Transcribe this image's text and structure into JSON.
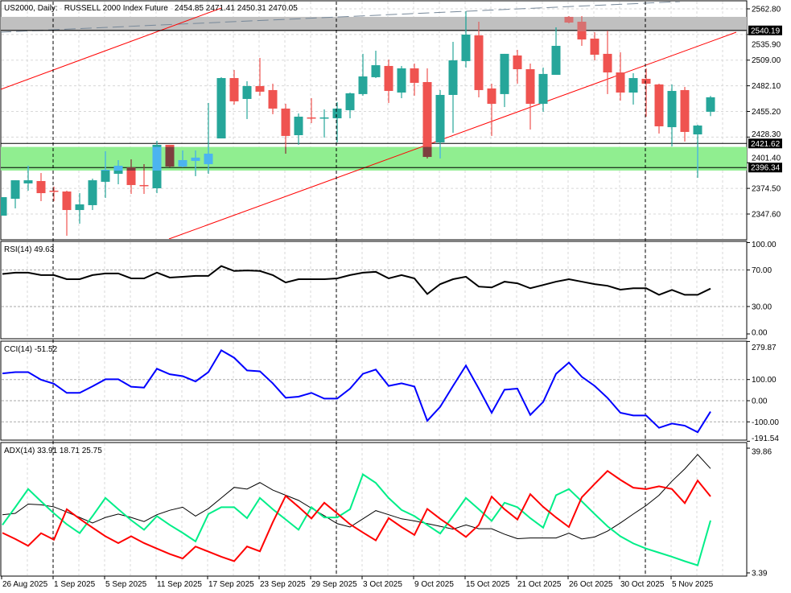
{
  "header": {
    "symbol": "US2000, Daily:",
    "description": "RUSSELL 2000 Index Future",
    "ohlc": "2454.85 2471.41 2450.31 2470.05"
  },
  "colors": {
    "bull": "#26a69a",
    "bear": "#ef5350",
    "bull_in_zone": "#4cb4f0",
    "bear_in_zone": "#7d3f3f",
    "bear_in_gray": "#d87070",
    "support_zone": "#90ee90",
    "resistance_zone": "#c0c0c0",
    "trendline": "#ff0000",
    "rsi": "#000000",
    "cci": "#0000ff",
    "adx": "#000000",
    "plus_di": "#00ee88",
    "minus_di": "#ff0000"
  },
  "price_axis": {
    "ticks": [
      "2562.80",
      "2535.90",
      "2509.00",
      "2482.10",
      "2455.20",
      "2428.30",
      "2401.40",
      "2374.50",
      "2347.60"
    ],
    "tick_values": [
      2562.8,
      2535.9,
      2509.0,
      2482.1,
      2455.2,
      2428.3,
      2401.4,
      2374.5,
      2347.6
    ],
    "markers": [
      "2540.19",
      "2421.62",
      "2396.34"
    ],
    "marker_values": [
      2540.19,
      2421.62,
      2396.34
    ]
  },
  "zones": {
    "support": [
      2393.2,
      2418.0
    ],
    "resistance": [
      2539.2,
      2554.4
    ]
  },
  "dates": [
    "26 Aug 2025",
    "1 Sep 2025",
    "5 Sep 2025",
    "11 Sep 2025",
    "17 Sep 2025",
    "23 Sep 2025",
    "29 Sep 2025",
    "3 Oct 2025",
    "9 Oct 2025",
    "15 Oct 2025",
    "21 Oct 2025",
    "26 Oct 2025",
    "30 Oct 2025",
    "5 Nov 2025"
  ],
  "rsi": {
    "label": "RSI(14) 49.63",
    "ticks": [
      "100.00",
      "70.00",
      "30.00",
      "0.00"
    ],
    "tick_values": [
      100,
      70,
      30,
      0
    ]
  },
  "cci": {
    "label": "CCI(14) -51.52",
    "ticks": [
      "279.87",
      "100.00",
      "0.00",
      "-100.00",
      "-191.54"
    ],
    "tick_values": [
      279.87,
      100,
      0,
      -100,
      -191.54
    ]
  },
  "adx": {
    "label": "ADX(14) 33.91 18.71 25.75",
    "ticks": [
      "39.86",
      "3.39"
    ],
    "tick_values": [
      39.86,
      3.39
    ]
  },
  "chart_data": {
    "type": "candlestick",
    "ohlc": [
      [
        2345.9,
        2365.3,
        2345.9,
        2365.3
      ],
      [
        2363.6,
        2383.0,
        2353.5,
        2383.0
      ],
      [
        2379.7,
        2398.2,
        2372.1,
        2383.0
      ],
      [
        2382.2,
        2390.6,
        2361.1,
        2369.5
      ],
      [
        2372.1,
        2376.3,
        2361.1,
        2371.2
      ],
      [
        2371.2,
        2372.1,
        2324.8,
        2351.8
      ],
      [
        2351.8,
        2369.5,
        2337.5,
        2357.7
      ],
      [
        2356.9,
        2384.7,
        2351.8,
        2383.0
      ],
      [
        2381.4,
        2413.4,
        2364.5,
        2394.0
      ],
      [
        2389.8,
        2404.1,
        2378.8,
        2398.2
      ],
      [
        2396.5,
        2405.0,
        2368.7,
        2378.0
      ],
      [
        2378.0,
        2399.9,
        2368.7,
        2377.5
      ],
      [
        2374.6,
        2424.4,
        2369.5,
        2420.2
      ],
      [
        2420.2,
        2420.2,
        2396.5,
        2397.4
      ],
      [
        2397.4,
        2414.3,
        2396.5,
        2404.1
      ],
      [
        2403.3,
        2414.3,
        2387.3,
        2406.7
      ],
      [
        2399.9,
        2464.1,
        2389.8,
        2410.9
      ],
      [
        2426.9,
        2491.1,
        2426.9,
        2490.2
      ],
      [
        2490.2,
        2498.7,
        2462.4,
        2465.8
      ],
      [
        2468.3,
        2486.9,
        2447.2,
        2481.8
      ],
      [
        2481.8,
        2511.3,
        2471.7,
        2475.9
      ],
      [
        2477.6,
        2484.3,
        2452.3,
        2458.2
      ],
      [
        2458.2,
        2463.2,
        2410.9,
        2429.5
      ],
      [
        2430.3,
        2453.1,
        2420.2,
        2449.7
      ],
      [
        2448.9,
        2469.1,
        2443.0,
        2448.0
      ],
      [
        2448.0,
        2457.3,
        2427.8,
        2448.9
      ],
      [
        2448.0,
        2464.9,
        2422.7,
        2458.2
      ],
      [
        2456.5,
        2475.0,
        2448.0,
        2474.2
      ],
      [
        2473.4,
        2515.6,
        2471.7,
        2491.9
      ],
      [
        2491.1,
        2518.9,
        2490.2,
        2503.7
      ],
      [
        2502.9,
        2509.6,
        2464.1,
        2476.7
      ],
      [
        2475.0,
        2502.9,
        2469.1,
        2500.4
      ],
      [
        2500.4,
        2505.4,
        2471.7,
        2485.2
      ],
      [
        2486.0,
        2500.4,
        2405.8,
        2407.5
      ],
      [
        2422.7,
        2477.6,
        2406.0,
        2472.5
      ],
      [
        2472.5,
        2528.2,
        2432.8,
        2508.8
      ],
      [
        2508.0,
        2560.3,
        2501.2,
        2535.8
      ],
      [
        2535.0,
        2549.3,
        2470.0,
        2477.6
      ],
      [
        2479.3,
        2484.3,
        2429.5,
        2463.2
      ],
      [
        2473.4,
        2515.6,
        2459.8,
        2515.6
      ],
      [
        2513.9,
        2519.8,
        2484.3,
        2499.5
      ],
      [
        2499.5,
        2505.4,
        2436.2,
        2463.2
      ],
      [
        2463.2,
        2501.2,
        2454.8,
        2494.5
      ],
      [
        2493.6,
        2543.4,
        2493.6,
        2524.0
      ],
      [
        2554.4,
        2555.2,
        2547.6,
        2548.5
      ],
      [
        2549.3,
        2555.2,
        2524.0,
        2530.7
      ],
      [
        2531.6,
        2538.3,
        2508.8,
        2514.7
      ],
      [
        2515.6,
        2540.0,
        2473.4,
        2496.1
      ],
      [
        2496.1,
        2517.2,
        2466.6,
        2475.0
      ],
      [
        2475.0,
        2495.3,
        2462.4,
        2490.2
      ],
      [
        2489.4,
        2500.4,
        2449.7,
        2484.3
      ],
      [
        2483.5,
        2484.3,
        2432.0,
        2439.6
      ],
      [
        2438.7,
        2483.5,
        2418.5,
        2476.7
      ],
      [
        2477.6,
        2480.9,
        2423.6,
        2433.7
      ],
      [
        2431.1,
        2441.3,
        2385.6,
        2440.4
      ],
      [
        2454.85,
        2471.41,
        2450.31,
        2470.05
      ]
    ],
    "rsi": [
      65.6,
      67.1,
      67.1,
      64.4,
      64.4,
      59.9,
      59.9,
      64.4,
      66.2,
      66.2,
      60.8,
      60.8,
      67.1,
      61.7,
      62.6,
      63.5,
      63.5,
      74.3,
      68.9,
      69.5,
      68.9,
      64.4,
      56.3,
      59.9,
      59.9,
      59.9,
      60.8,
      64.4,
      67.1,
      68.0,
      60.8,
      64.4,
      60.8,
      43.7,
      54.5,
      59.9,
      62.6,
      51.8,
      50.9,
      57.2,
      55.4,
      50.0,
      53.6,
      57.2,
      59.9,
      57.2,
      54.5,
      52.7,
      48.5,
      50.0,
      50.0,
      42.8,
      48.2,
      42.8,
      42.8,
      49.63
    ],
    "cci": [
      129,
      135,
      135,
      99,
      80,
      37,
      37,
      68,
      101,
      101,
      66,
      62,
      151,
      125,
      116,
      91,
      135,
      238,
      203,
      143,
      139,
      82,
      14,
      19,
      37,
      10,
      10,
      57,
      127,
      147,
      70,
      82,
      67,
      -95,
      -29,
      70,
      166,
      57,
      -57,
      52,
      57,
      -67,
      -6,
      127,
      180,
      113,
      70,
      13,
      -57,
      -70,
      -70,
      -128,
      -108,
      -118,
      -149,
      -51.52
    ],
    "adx": [
      20.4,
      20.8,
      23.5,
      23.3,
      22.7,
      21.2,
      19.6,
      18.0,
      19.6,
      20.6,
      19.6,
      18.4,
      20.4,
      21.7,
      22.6,
      20.0,
      22.2,
      25.3,
      28.4,
      27.9,
      29.8,
      27.6,
      26.1,
      24.6,
      22.3,
      20.1,
      17.8,
      16.8,
      19.2,
      21.6,
      20.4,
      19.2,
      18.6,
      17.8,
      17.0,
      16.2,
      17.4,
      16.3,
      16.3,
      14.7,
      13.4,
      13.6,
      13.6,
      13.6,
      15.0,
      13.3,
      13.9,
      15.6,
      18.0,
      20.6,
      23.1,
      26.1,
      30.2,
      33.8,
      38.0,
      33.91
    ],
    "plus_di": [
      17.4,
      22.6,
      27.9,
      24.3,
      20.8,
      17.6,
      15.0,
      20.0,
      25.3,
      22.0,
      18.8,
      16.0,
      20.0,
      17.4,
      15.1,
      12.6,
      20.6,
      22.6,
      22.6,
      19.4,
      25.3,
      22.0,
      19.0,
      16.0,
      22.6,
      19.6,
      19.6,
      22.0,
      32.2,
      29.7,
      25.3,
      21.8,
      20.0,
      17.4,
      14.9,
      20.0,
      25.3,
      22.0,
      18.6,
      23.9,
      22.6,
      19.4,
      16.6,
      26.1,
      27.9,
      24.3,
      20.6,
      17.0,
      14.1,
      12.0,
      10.5,
      9.3,
      8.1,
      6.8,
      5.6,
      18.71
    ],
    "minus_di": [
      15.1,
      13.3,
      11.3,
      15.0,
      13.1,
      22.0,
      19.2,
      16.6,
      14.1,
      12.1,
      14.1,
      12.1,
      10.5,
      8.9,
      7.6,
      11.1,
      9.6,
      8.1,
      6.8,
      11.1,
      9.7,
      18.2,
      25.9,
      22.7,
      19.3,
      23.9,
      20.8,
      17.6,
      15.2,
      12.9,
      19.4,
      16.8,
      14.5,
      22.1,
      19.2,
      16.6,
      13.9,
      17.4,
      25.7,
      22.0,
      19.0,
      26.4,
      22.7,
      19.6,
      16.8,
      25.5,
      29.4,
      33.2,
      30.6,
      28.3,
      27.9,
      28.7,
      27.9,
      23.8,
      30.4,
      25.75
    ]
  }
}
